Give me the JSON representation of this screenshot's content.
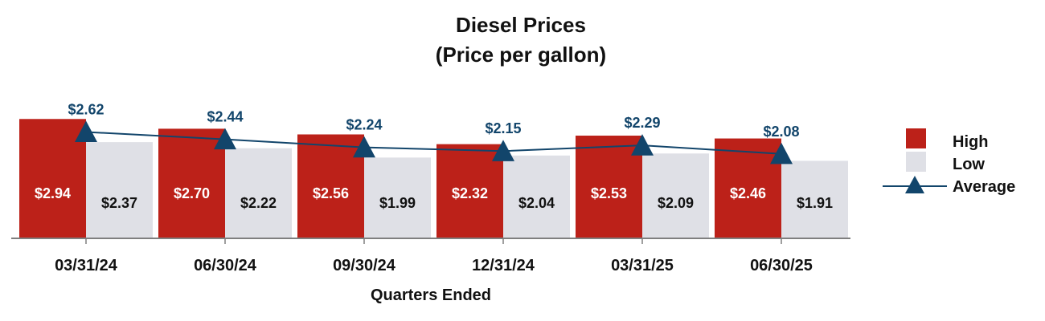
{
  "colors": {
    "high": "#bc2119",
    "low": "#dfe0e6",
    "average": "#12456b",
    "axis": "#7f7f7f"
  },
  "chart_data": {
    "type": "bar",
    "title": "Diesel Prices",
    "subtitle": "(Price per gallon)",
    "xlabel": "Quarters Ended",
    "ylabel": "",
    "ylim": [
      0,
      3.4
    ],
    "grid": false,
    "legend_position": "right",
    "categories": [
      "03/31/24",
      "06/30/24",
      "09/30/24",
      "12/31/24",
      "03/31/25",
      "06/30/25"
    ],
    "series": [
      {
        "name": "High",
        "kind": "bar",
        "values": [
          2.94,
          2.7,
          2.56,
          2.32,
          2.53,
          2.46
        ],
        "labels": [
          "$2.94",
          "$2.70",
          "$2.56",
          "$2.32",
          "$2.53",
          "$2.46"
        ]
      },
      {
        "name": "Low",
        "kind": "bar",
        "values": [
          2.37,
          2.22,
          1.99,
          2.04,
          2.09,
          1.91
        ],
        "labels": [
          "$2.37",
          "$2.22",
          "$1.99",
          "$2.04",
          "$2.09",
          "$1.91"
        ]
      },
      {
        "name": "Average",
        "kind": "line",
        "marker": "triangle",
        "values": [
          2.62,
          2.44,
          2.24,
          2.15,
          2.29,
          2.08
        ],
        "labels": [
          "$2.62",
          "$2.44",
          "$2.24",
          "$2.15",
          "$2.29",
          "$2.08"
        ]
      }
    ]
  }
}
